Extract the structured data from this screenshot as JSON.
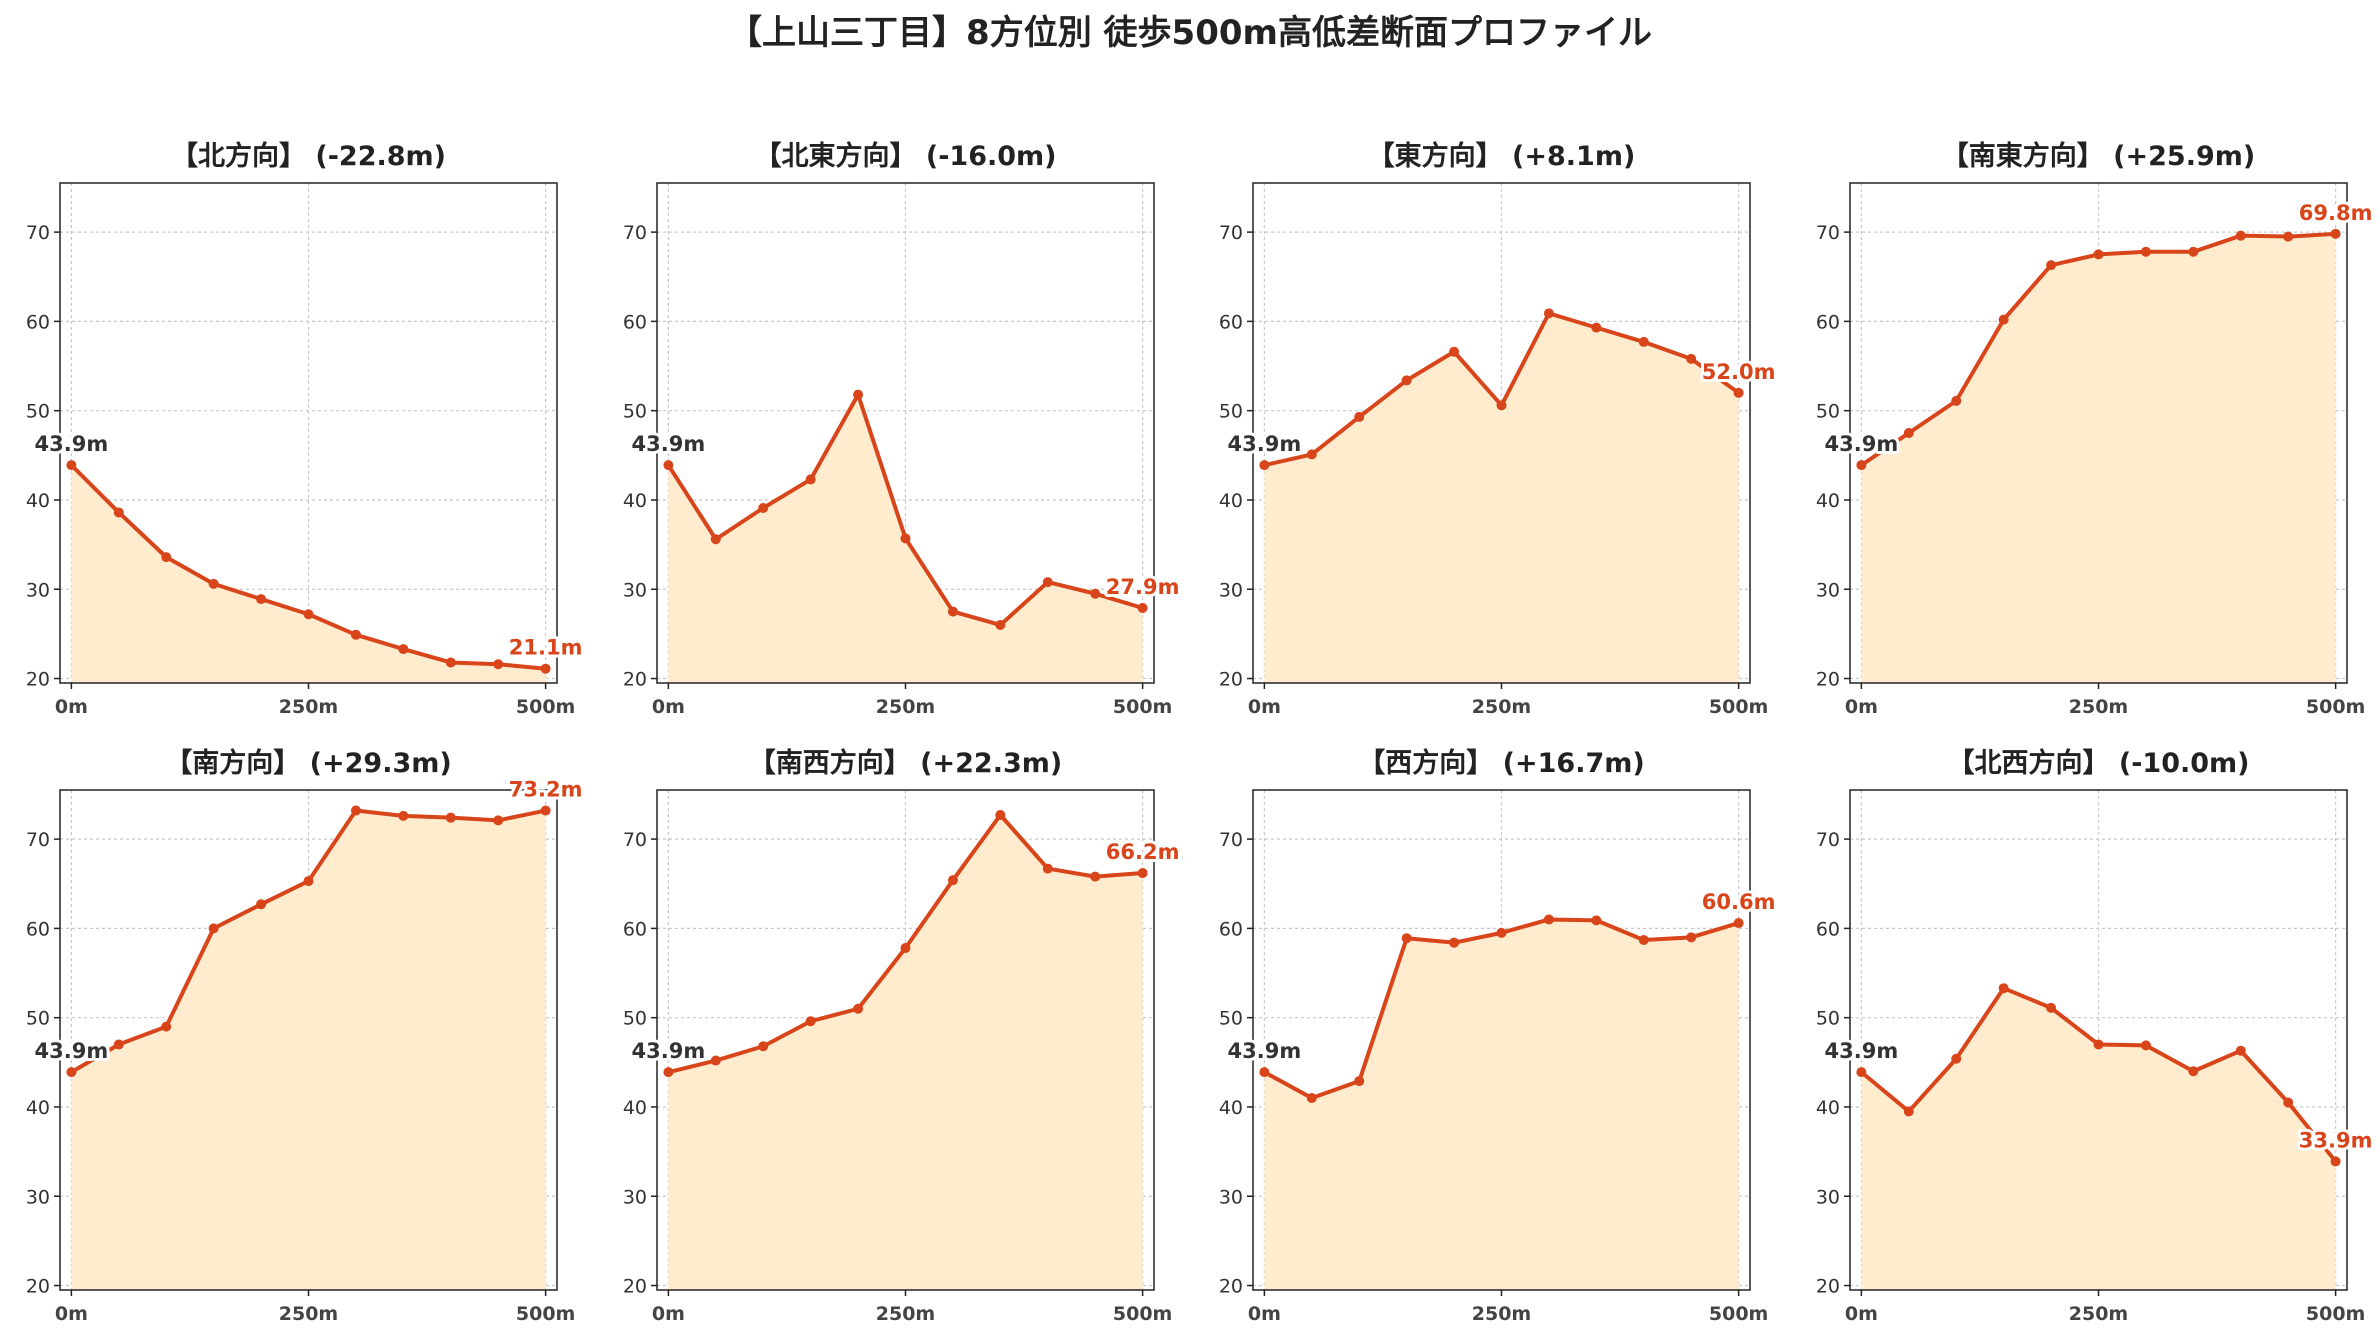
{
  "figure": {
    "title": "【上山三丁目】8方位別 徒歩500m高低差断面プロファイル"
  },
  "chart_data": [
    {
      "type": "line",
      "title": "【北方向】 (-22.8m)",
      "x": [
        0,
        50,
        100,
        150,
        200,
        250,
        300,
        350,
        400,
        450,
        500
      ],
      "values": [
        43.9,
        38.6,
        33.6,
        30.6,
        28.9,
        27.2,
        24.9,
        23.3,
        21.8,
        21.6,
        21.1
      ],
      "start_label": "43.9m",
      "end_label": "21.1m",
      "xticks": [
        "0m",
        "250m",
        "500m"
      ],
      "yticks": [
        20,
        30,
        40,
        50,
        60,
        70
      ],
      "ylim": [
        19.5,
        75.5
      ],
      "xlim": [
        -12,
        512
      ],
      "grid": true
    },
    {
      "type": "line",
      "title": "【北東方向】 (-16.0m)",
      "x": [
        0,
        50,
        100,
        150,
        200,
        250,
        300,
        350,
        400,
        450,
        500
      ],
      "values": [
        43.9,
        35.6,
        39.1,
        42.3,
        51.8,
        35.7,
        27.5,
        26.0,
        30.8,
        29.5,
        27.9
      ],
      "start_label": "43.9m",
      "end_label": "27.9m",
      "xticks": [
        "0m",
        "250m",
        "500m"
      ],
      "yticks": [
        20,
        30,
        40,
        50,
        60,
        70
      ],
      "ylim": [
        19.5,
        75.5
      ],
      "xlim": [
        -12,
        512
      ],
      "grid": true
    },
    {
      "type": "line",
      "title": "【東方向】 (+8.1m)",
      "x": [
        0,
        50,
        100,
        150,
        200,
        250,
        300,
        350,
        400,
        450,
        500
      ],
      "values": [
        43.9,
        45.1,
        49.3,
        53.4,
        56.6,
        50.6,
        60.9,
        59.3,
        57.7,
        55.8,
        52.0
      ],
      "start_label": "43.9m",
      "end_label": "52.0m",
      "xticks": [
        "0m",
        "250m",
        "500m"
      ],
      "yticks": [
        20,
        30,
        40,
        50,
        60,
        70
      ],
      "ylim": [
        19.5,
        75.5
      ],
      "xlim": [
        -12,
        512
      ],
      "grid": true
    },
    {
      "type": "line",
      "title": "【南東方向】 (+25.9m)",
      "x": [
        0,
        50,
        100,
        150,
        200,
        250,
        300,
        350,
        400,
        450,
        500
      ],
      "values": [
        43.9,
        47.5,
        51.1,
        60.2,
        66.3,
        67.5,
        67.8,
        67.8,
        69.6,
        69.5,
        69.8
      ],
      "start_label": "43.9m",
      "end_label": "69.8m",
      "xticks": [
        "0m",
        "250m",
        "500m"
      ],
      "yticks": [
        20,
        30,
        40,
        50,
        60,
        70
      ],
      "ylim": [
        19.5,
        75.5
      ],
      "xlim": [
        -12,
        512
      ],
      "grid": true
    },
    {
      "type": "line",
      "title": "【南方向】 (+29.3m)",
      "x": [
        0,
        50,
        100,
        150,
        200,
        250,
        300,
        350,
        400,
        450,
        500
      ],
      "values": [
        43.9,
        47.0,
        49.0,
        60.0,
        62.7,
        65.3,
        73.2,
        72.6,
        72.4,
        72.1,
        73.2
      ],
      "start_label": "43.9m",
      "end_label": "73.2m",
      "xticks": [
        "0m",
        "250m",
        "500m"
      ],
      "yticks": [
        20,
        30,
        40,
        50,
        60,
        70
      ],
      "ylim": [
        19.5,
        75.5
      ],
      "xlim": [
        -12,
        512
      ],
      "grid": true
    },
    {
      "type": "line",
      "title": "【南西方向】 (+22.3m)",
      "x": [
        0,
        50,
        100,
        150,
        200,
        250,
        300,
        350,
        400,
        450,
        500
      ],
      "values": [
        43.9,
        45.2,
        46.8,
        49.6,
        51.0,
        57.8,
        65.4,
        72.7,
        66.7,
        65.8,
        66.2
      ],
      "start_label": "43.9m",
      "end_label": "66.2m",
      "xticks": [
        "0m",
        "250m",
        "500m"
      ],
      "yticks": [
        20,
        30,
        40,
        50,
        60,
        70
      ],
      "ylim": [
        19.5,
        75.5
      ],
      "xlim": [
        -12,
        512
      ],
      "grid": true
    },
    {
      "type": "line",
      "title": "【西方向】 (+16.7m)",
      "x": [
        0,
        50,
        100,
        150,
        200,
        250,
        300,
        350,
        400,
        450,
        500
      ],
      "values": [
        43.9,
        41.0,
        42.9,
        58.9,
        58.4,
        59.5,
        61.0,
        60.9,
        58.7,
        59.0,
        60.6
      ],
      "start_label": "43.9m",
      "end_label": "60.6m",
      "xticks": [
        "0m",
        "250m",
        "500m"
      ],
      "yticks": [
        20,
        30,
        40,
        50,
        60,
        70
      ],
      "ylim": [
        19.5,
        75.5
      ],
      "xlim": [
        -12,
        512
      ],
      "grid": true
    },
    {
      "type": "line",
      "title": "【北西方向】 (-10.0m)",
      "x": [
        0,
        50,
        100,
        150,
        200,
        250,
        300,
        350,
        400,
        450,
        500
      ],
      "values": [
        43.9,
        39.5,
        45.4,
        53.3,
        51.1,
        47.0,
        46.9,
        44.0,
        46.3,
        40.5,
        33.9
      ],
      "start_label": "43.9m",
      "end_label": "33.9m",
      "xticks": [
        "0m",
        "250m",
        "500m"
      ],
      "yticks": [
        20,
        30,
        40,
        50,
        60,
        70
      ],
      "ylim": [
        19.5,
        75.5
      ],
      "xlim": [
        -12,
        512
      ],
      "grid": true
    }
  ],
  "colors": {
    "line": "#d9451a",
    "fill": "#ffebcd",
    "grid": "#c8c8c8",
    "start_label": "#333333",
    "end_label": "#d9451a"
  }
}
